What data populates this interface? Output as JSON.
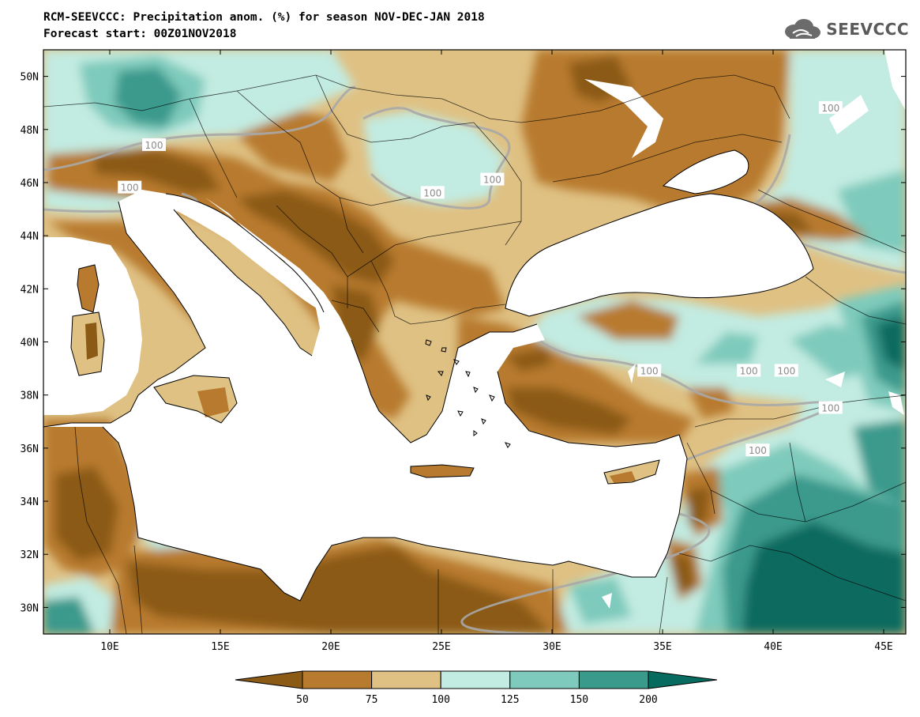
{
  "title_line1": "RCM-SEEVCCC: Precipitation anom. (%) for season NOV-DEC-JAN 2018",
  "title_line2": "Forecast start: 00Z01NOV2018",
  "logo": {
    "text": "SEEVCCC",
    "icon": "cloud-logo-icon",
    "icon_color": "#6b6b6b"
  },
  "map": {
    "lon_range": [
      7,
      46
    ],
    "lat_range": [
      29,
      51
    ],
    "lon_ticks": [
      10,
      15,
      20,
      25,
      30,
      35,
      40,
      45
    ],
    "lon_tick_labels": [
      "10E",
      "15E",
      "20E",
      "25E",
      "30E",
      "35E",
      "40E",
      "45E"
    ],
    "lat_ticks": [
      30,
      32,
      34,
      36,
      38,
      40,
      42,
      44,
      46,
      48,
      50
    ],
    "lat_tick_labels": [
      "30N",
      "32N",
      "34N",
      "36N",
      "38N",
      "40N",
      "42N",
      "44N",
      "46N",
      "48N",
      "50N"
    ],
    "contour_labels": [
      {
        "text": "100",
        "lon": 12.0,
        "lat": 47.4
      },
      {
        "text": "100",
        "lon": 10.9,
        "lat": 45.8
      },
      {
        "text": "100",
        "lon": 24.6,
        "lat": 45.6
      },
      {
        "text": "100",
        "lon": 27.3,
        "lat": 46.1
      },
      {
        "text": "100",
        "lon": 42.6,
        "lat": 48.8
      },
      {
        "text": "100",
        "lon": 34.4,
        "lat": 38.9
      },
      {
        "text": "100",
        "lon": 38.9,
        "lat": 38.9
      },
      {
        "text": "100",
        "lon": 40.6,
        "lat": 38.9
      },
      {
        "text": "100",
        "lon": 42.6,
        "lat": 37.5
      },
      {
        "text": "100",
        "lon": 39.3,
        "lat": 35.9
      }
    ]
  },
  "colorbar": {
    "colors": [
      "#8b5a14",
      "#b87a2e",
      "#dfc184",
      "#c2ebe1",
      "#7ecabc",
      "#3a9a8c",
      "#076b5f"
    ],
    "labels": [
      "50",
      "75",
      "100",
      "125",
      "150",
      "200"
    ]
  }
}
